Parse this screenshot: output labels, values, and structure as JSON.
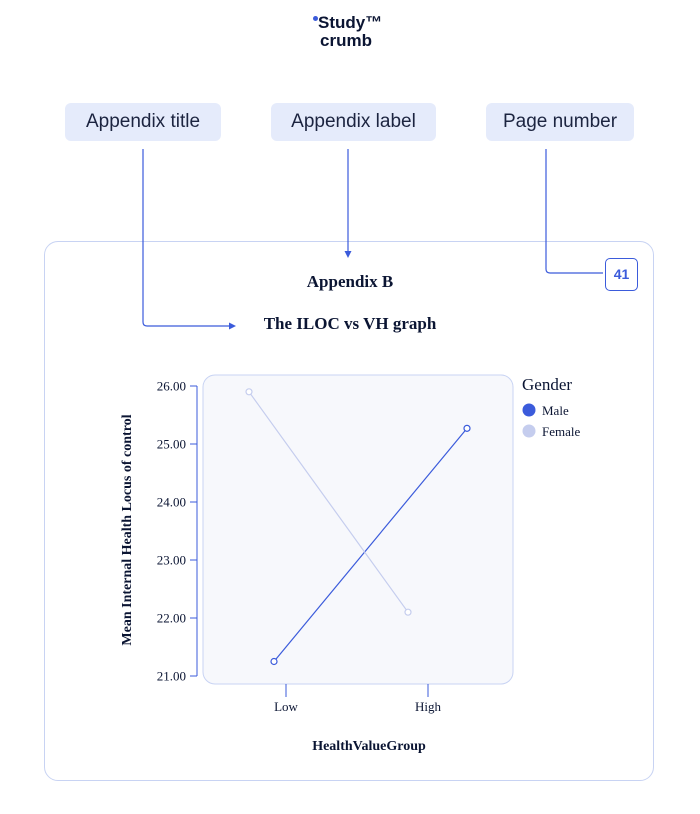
{
  "logo": {
    "line1": "Study™",
    "line2": "crumb"
  },
  "callouts": [
    {
      "label": "Appendix title"
    },
    {
      "label": "Appendix label"
    },
    {
      "label": "Page number"
    }
  ],
  "page": {
    "label": "Appendix B",
    "title": "The ILOC vs VH graph",
    "page_number": "41"
  },
  "colors": {
    "accent": "#3b5bdb",
    "pill_bg": "#e5ebfb",
    "male": "#3b5bdb",
    "female": "#c5cdee",
    "plot_bg": "#f7f8fc"
  },
  "chart_data": {
    "type": "line",
    "title": "",
    "xlabel": "HealthValueGroup",
    "ylabel": "Mean Internal Health Locus of control",
    "categories": [
      "Low",
      "High"
    ],
    "yticks": [
      "21.00",
      "22.00",
      "23.00",
      "24.00",
      "25.00",
      "26.00"
    ],
    "ylim": [
      21,
      26
    ],
    "legend": {
      "title": "Gender",
      "position": "right"
    },
    "series": [
      {
        "name": "Male",
        "values": [
          21.25,
          25.27
        ]
      },
      {
        "name": "Female",
        "values": [
          25.9,
          22.1
        ]
      }
    ]
  }
}
